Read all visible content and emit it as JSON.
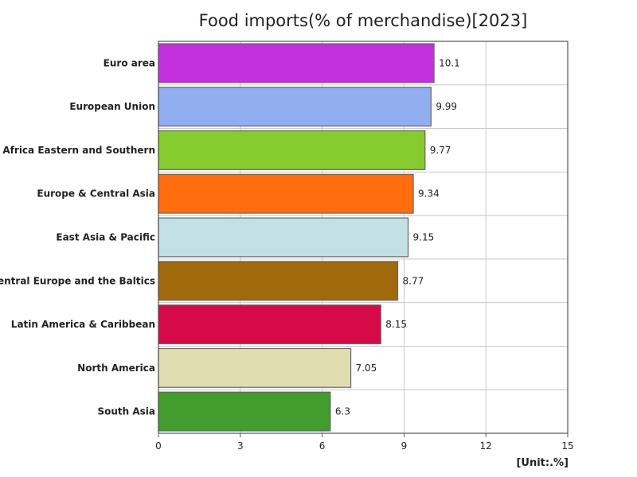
{
  "chart_data": {
    "type": "bar",
    "orientation": "horizontal",
    "title": "Food imports(% of merchandise)[2023]",
    "unit_label": "[Unit:.%]",
    "categories": [
      "Euro area",
      "European Union",
      "Africa Eastern and Southern",
      "Europe & Central Asia",
      "East Asia & Pacific",
      "Central Europe and the Baltics",
      "Latin America & Caribbean",
      "North America",
      "South Asia"
    ],
    "values": [
      10.1,
      9.99,
      9.77,
      9.34,
      9.15,
      8.77,
      8.15,
      7.05,
      6.3
    ],
    "value_labels": [
      "10.1",
      "9.99",
      "9.77",
      "9.34",
      "9.15",
      "8.77",
      "8.15",
      "7.05",
      "6.3"
    ],
    "colors": [
      "#c232dc",
      "#91aef0",
      "#86cc2e",
      "#ff6d0f",
      "#c2e0e6",
      "#a0690c",
      "#d60a48",
      "#e0deb0",
      "#429c2e"
    ],
    "xlim": [
      0,
      15
    ],
    "xticks": [
      0,
      3,
      6,
      9,
      12,
      15
    ],
    "xtick_labels": [
      "0",
      "3",
      "6",
      "9",
      "12",
      "15"
    ],
    "grid": true,
    "legend": "none"
  }
}
